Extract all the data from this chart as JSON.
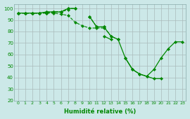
{
  "xlabel": "Humidité relative (%)",
  "x": [
    0,
    1,
    2,
    3,
    4,
    5,
    6,
    7,
    8,
    9,
    10,
    11,
    12,
    13,
    14,
    15,
    16,
    17,
    18,
    19,
    20,
    21,
    22,
    23
  ],
  "line1": [
    96,
    96,
    96,
    96,
    96,
    97,
    97,
    99,
    null,
    null,
    null,
    null,
    null,
    null,
    null,
    null,
    null,
    null,
    null,
    null,
    null,
    null,
    null,
    null
  ],
  "line2": [
    96,
    96,
    96,
    96,
    97,
    97,
    97,
    100,
    100,
    null,
    93,
    84,
    84,
    76,
    73,
    null,
    null,
    null,
    null,
    null,
    null,
    null,
    null,
    null
  ],
  "line3": [
    96,
    96,
    96,
    96,
    96,
    96,
    95,
    94,
    88,
    85,
    83,
    83,
    83,
    null,
    null,
    null,
    null,
    null,
    null,
    null,
    null,
    null,
    null,
    null
  ],
  "line4": [
    96,
    96,
    96,
    96,
    97,
    97,
    97,
    100,
    100,
    null,
    93,
    84,
    84,
    76,
    73,
    57,
    47,
    43,
    41,
    39,
    39,
    null,
    null,
    null
  ],
  "line5": [
    null,
    null,
    null,
    null,
    null,
    null,
    null,
    null,
    null,
    null,
    null,
    null,
    76,
    73,
    null,
    57,
    47,
    43,
    41,
    47,
    57,
    65,
    71,
    71
  ],
  "bg_color": "#cce8e8",
  "line_color": "#008800",
  "ylim": [
    20,
    104
  ],
  "yticks": [
    20,
    30,
    40,
    50,
    60,
    70,
    80,
    90,
    100
  ],
  "xlim": [
    -0.5,
    23.5
  ]
}
